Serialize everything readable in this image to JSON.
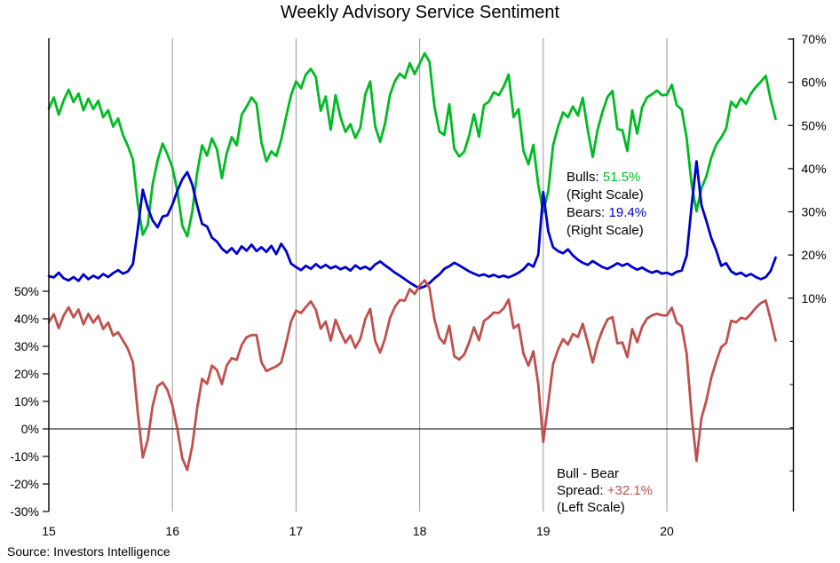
{
  "title": "Weekly Advisory Service Sentiment",
  "source": "Source: Investors Intelligence",
  "colors": {
    "bulls": "#00bb22",
    "bears": "#0000cc",
    "spread": "#c0504d",
    "grid": "#999999",
    "axis": "#000000",
    "zero_line": "#000000"
  },
  "annotations": {
    "bulls": {
      "label": "Bulls:",
      "value": "51.5%",
      "scale_note": "(Right Scale)"
    },
    "bears": {
      "label": "Bears:",
      "value": "19.4%",
      "scale_note": "(Right Scale)"
    },
    "spread": {
      "line1": "Bull - Bear",
      "label": "Spread:",
      "value": "+32.1%",
      "scale_note": "(Left Scale)"
    }
  },
  "chart_data": {
    "type": "line",
    "title": "Weekly Advisory Service Sentiment",
    "x_axis": {
      "labels": [
        "15",
        "16",
        "17",
        "18",
        "19",
        "20"
      ],
      "values": [
        15,
        16,
        17,
        18,
        19,
        20
      ]
    },
    "left_axis": {
      "tick_labels": [
        "50%",
        "40%",
        "30%",
        "20%",
        "10%",
        "0%",
        "-10%",
        "-20%",
        "-30%"
      ],
      "tick_values": [
        50,
        40,
        30,
        20,
        10,
        0,
        -10,
        -20,
        -30
      ]
    },
    "right_axis": {
      "tick_labels": [
        "70%",
        "60%",
        "50%",
        "40%",
        "30%",
        "20%",
        "10%"
      ],
      "tick_values": [
        70,
        60,
        50,
        40,
        30,
        20,
        10
      ],
      "minor_tick_values": [
        0,
        -10,
        -20,
        -30
      ]
    },
    "x_start": 15.0,
    "x_step": 0.04,
    "series": [
      {
        "name": "Bulls",
        "scale": "right",
        "color_key": "bulls",
        "last_value": 51.5,
        "values": [
          53.9,
          56.5,
          52.5,
          55.8,
          58.3,
          55.4,
          57.4,
          53.5,
          56.2,
          53.8,
          55.7,
          51.9,
          53.5,
          49.7,
          51.6,
          47.8,
          45.2,
          42.1,
          31.8,
          24.7,
          26.9,
          36.4,
          41.9,
          45.8,
          43.3,
          40.2,
          34.8,
          26.8,
          24.3,
          30.0,
          39.0,
          45.4,
          43.0,
          47.0,
          44.5,
          37.8,
          43.6,
          47.3,
          45.4,
          52.5,
          54.3,
          56.5,
          55.0,
          46.1,
          41.7,
          44.0,
          42.9,
          46.7,
          52.1,
          57.0,
          60.2,
          58.6,
          61.8,
          63.1,
          61.2,
          53.4,
          56.7,
          49.0,
          57.0,
          51.9,
          48.5,
          50.3,
          47.1,
          49.5,
          57.2,
          60.2,
          49.8,
          46.2,
          50.4,
          57.1,
          60.3,
          62.0,
          61.0,
          64.4,
          61.9,
          64.3,
          66.7,
          64.7,
          54.3,
          48.6,
          47.8,
          54.9,
          44.6,
          42.8,
          43.9,
          47.6,
          52.6,
          47.4,
          54.7,
          55.5,
          57.7,
          57.0,
          59.0,
          61.8,
          51.9,
          53.8,
          44.1,
          41.0,
          45.5,
          36.2,
          29.9,
          34.8,
          45.4,
          49.7,
          53.0,
          51.9,
          54.4,
          52.3,
          56.4,
          49.0,
          42.7,
          49.0,
          53.2,
          56.6,
          58.0,
          49.2,
          48.9,
          44.1,
          53.5,
          48.1,
          54.2,
          56.5,
          57.2,
          58.1,
          57.0,
          57.1,
          59.4,
          54.7,
          53.7,
          47.1,
          36.5,
          30.1,
          35.5,
          38.2,
          42.6,
          45.6,
          47.2,
          49.3,
          55.5,
          54.2,
          56.3,
          55.0,
          57.4,
          58.9,
          60.1,
          61.5,
          56.0,
          51.5
        ]
      },
      {
        "name": "Bears",
        "scale": "right",
        "color_key": "bears",
        "last_value": 19.4,
        "values": [
          15.1,
          14.8,
          15.9,
          14.6,
          14.1,
          14.9,
          14.0,
          15.5,
          14.4,
          15.2,
          14.6,
          15.6,
          14.9,
          15.8,
          16.5,
          15.7,
          16.2,
          17.9,
          26.0,
          35.1,
          30.9,
          28.0,
          26.4,
          28.9,
          29.2,
          31.7,
          34.9,
          37.5,
          39.2,
          36.3,
          31.5,
          27.2,
          26.6,
          24.0,
          23.1,
          21.5,
          20.5,
          21.6,
          20.3,
          22.0,
          21.0,
          22.4,
          20.9,
          21.8,
          20.7,
          22.1,
          20.2,
          22.6,
          20.9,
          18.0,
          17.2,
          16.5,
          17.5,
          16.8,
          17.9,
          17.0,
          17.7,
          16.9,
          17.4,
          16.7,
          17.2,
          16.4,
          17.6,
          16.8,
          17.3,
          16.6,
          17.8,
          18.5,
          17.6,
          16.8,
          15.9,
          15.2,
          14.4,
          13.6,
          12.9,
          12.3,
          12.7,
          13.5,
          14.6,
          15.5,
          16.8,
          17.4,
          18.2,
          17.6,
          16.9,
          16.2,
          15.7,
          15.2,
          15.5,
          15.0,
          15.4,
          14.9,
          15.2,
          14.8,
          15.3,
          15.9,
          16.7,
          18.0,
          17.3,
          20.1,
          34.6,
          25.5,
          21.8,
          20.9,
          20.4,
          21.3,
          19.9,
          18.9,
          18.2,
          17.7,
          18.6,
          17.9,
          17.2,
          16.8,
          17.4,
          18.1,
          17.5,
          18.0,
          17.2,
          16.6,
          17.1,
          16.4,
          15.9,
          16.3,
          15.7,
          15.9,
          15.4,
          16.1,
          16.4,
          19.8,
          31.2,
          41.7,
          31.5,
          27.9,
          23.9,
          21.0,
          17.5,
          18.1,
          16.2,
          15.5,
          15.9,
          15.1,
          15.6,
          14.9,
          14.4,
          14.9,
          16.3,
          19.4
        ]
      },
      {
        "name": "Bull - Bear Spread",
        "scale": "left",
        "color_key": "spread",
        "last_value": 32.1,
        "values": [
          38.8,
          41.7,
          36.6,
          41.2,
          44.2,
          40.5,
          43.4,
          38.0,
          41.8,
          38.6,
          41.1,
          36.3,
          38.6,
          33.9,
          35.1,
          32.1,
          29.0,
          24.2,
          5.8,
          -10.4,
          -4.0,
          8.4,
          15.5,
          16.9,
          14.1,
          8.5,
          -0.1,
          -10.7,
          -14.9,
          -6.3,
          7.5,
          18.2,
          16.4,
          23.0,
          21.4,
          16.3,
          23.1,
          25.7,
          25.1,
          30.5,
          33.3,
          34.1,
          34.1,
          24.3,
          21.0,
          21.9,
          22.7,
          24.1,
          31.2,
          39.0,
          43.0,
          42.1,
          44.3,
          46.3,
          43.3,
          36.4,
          39.0,
          32.1,
          39.6,
          35.2,
          31.3,
          33.9,
          29.5,
          32.7,
          39.9,
          43.6,
          32.0,
          27.7,
          32.8,
          40.3,
          44.4,
          46.8,
          46.6,
          50.8,
          49.0,
          52.0,
          54.0,
          51.2,
          39.7,
          33.1,
          31.0,
          37.5,
          26.4,
          25.2,
          27.0,
          31.4,
          36.9,
          32.2,
          39.2,
          40.5,
          42.3,
          42.1,
          43.8,
          47.0,
          36.6,
          37.9,
          27.4,
          23.0,
          28.2,
          16.1,
          -4.7,
          9.3,
          23.6,
          28.8,
          32.6,
          30.6,
          34.5,
          33.4,
          38.2,
          31.3,
          24.1,
          31.1,
          36.0,
          39.8,
          40.6,
          31.1,
          31.4,
          26.1,
          36.3,
          31.5,
          37.1,
          40.1,
          41.3,
          41.8,
          41.3,
          41.2,
          44.0,
          38.6,
          37.3,
          27.3,
          5.3,
          -11.6,
          4.0,
          10.3,
          18.7,
          24.6,
          29.7,
          31.2,
          39.3,
          38.7,
          40.4,
          39.9,
          41.8,
          44.0,
          45.7,
          46.6,
          39.7,
          32.1
        ]
      }
    ]
  }
}
